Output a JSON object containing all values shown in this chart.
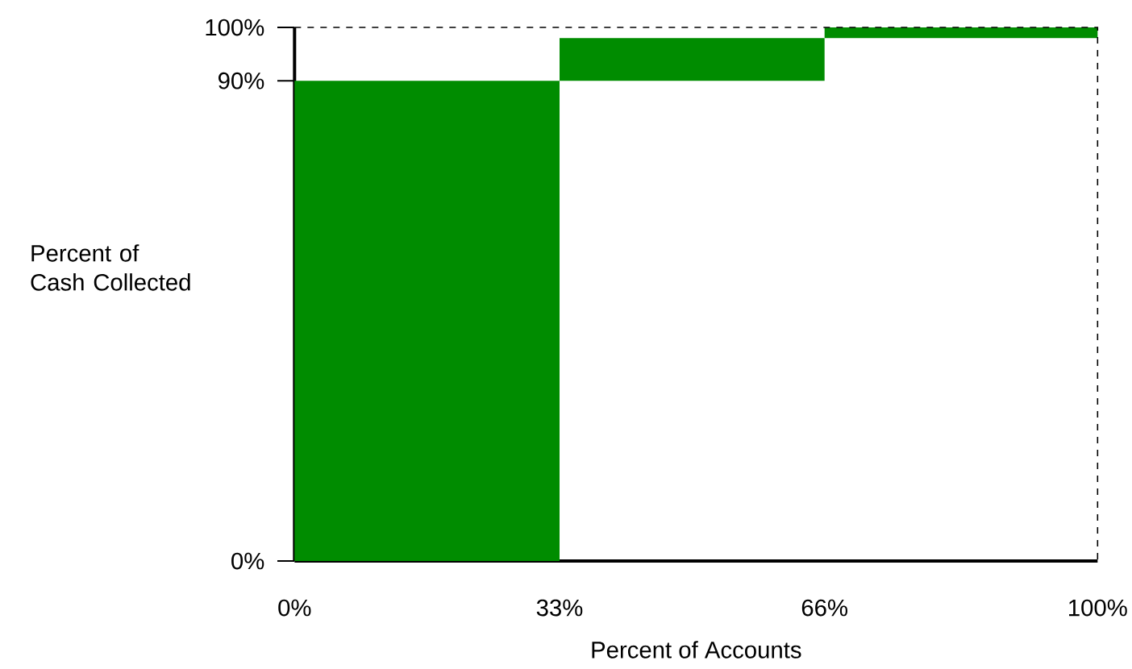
{
  "chart_data": {
    "type": "histogram",
    "bins": [
      0,
      33,
      66,
      100
    ],
    "values": [
      90,
      8,
      2
    ],
    "base": [
      0,
      90,
      98
    ],
    "color": "#008c00",
    "xlabel": "Percent of Accounts",
    "ylabel": "Percent of Cash Collected",
    "xlim": [
      0,
      100
    ],
    "xticks": [
      {
        "value": 0,
        "label": "0%"
      },
      {
        "value": 33,
        "label": "33%"
      },
      {
        "value": 66,
        "label": "66%"
      },
      {
        "value": 100,
        "label": "100%"
      }
    ],
    "ylim": [
      0,
      100
    ],
    "yticks": [
      {
        "value": 0,
        "label": "0%"
      },
      {
        "value": 90,
        "label": "90%"
      },
      {
        "value": 100,
        "label": "100%"
      }
    ]
  }
}
